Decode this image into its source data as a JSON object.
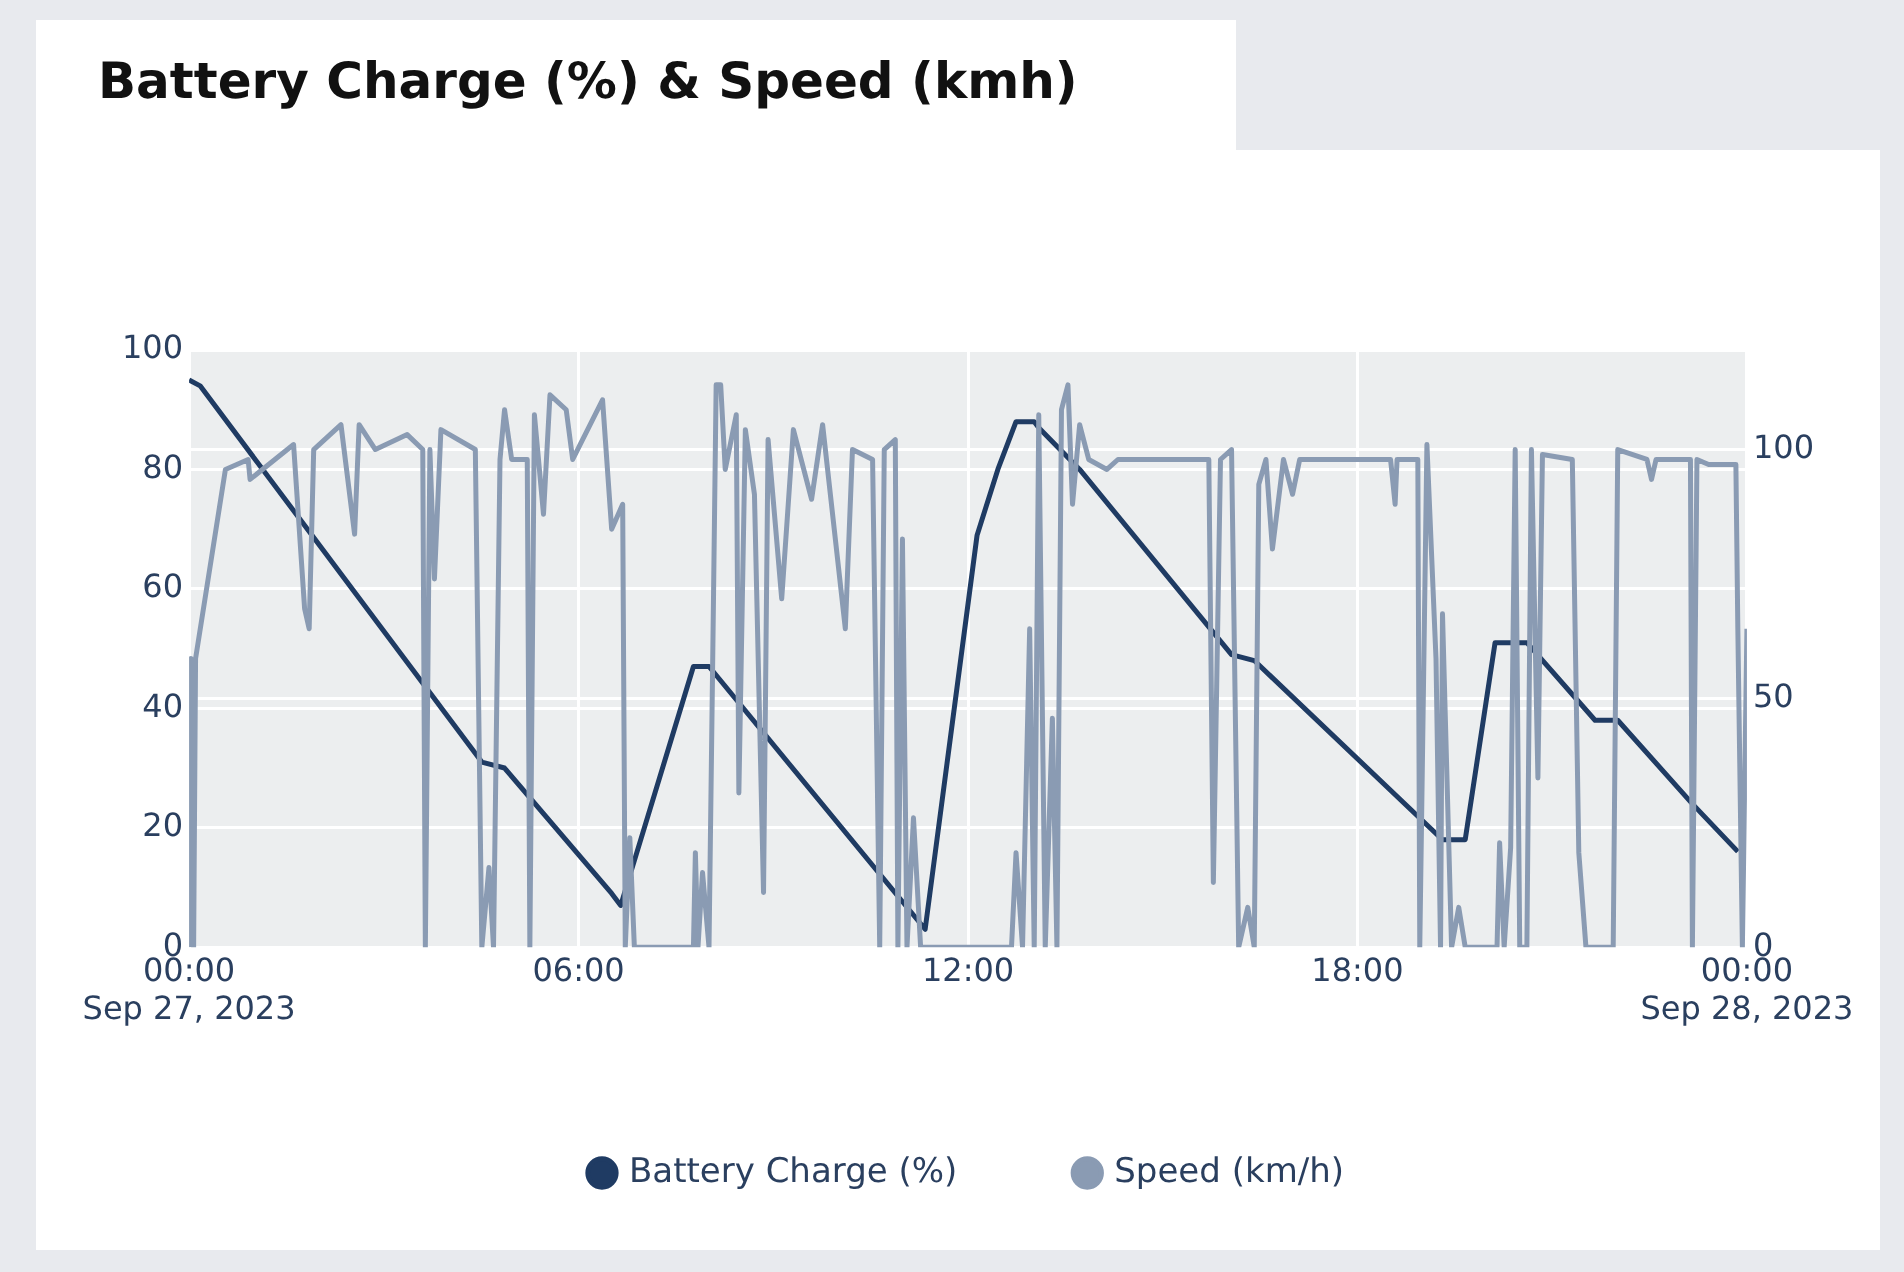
{
  "chart_data": {
    "type": "line",
    "title": "Battery Charge (%) & Speed (kmh)",
    "xlim": [
      0,
      24
    ],
    "xticks": [
      {
        "value": 0,
        "label": "00:00\nSep 27, 2023"
      },
      {
        "value": 6,
        "label": "06:00"
      },
      {
        "value": 12,
        "label": "12:00"
      },
      {
        "value": 18,
        "label": "18:00"
      },
      {
        "value": 24,
        "label": "00:00\nSep 28, 2023"
      }
    ],
    "ylim": [
      0,
      100
    ],
    "yticks": [
      0,
      20,
      40,
      60,
      80,
      100
    ],
    "y2lim": [
      0,
      120
    ],
    "y2ticks": [
      0,
      50,
      100
    ],
    "grid": true,
    "legend": "bottom",
    "line_style": "solid",
    "series": [
      {
        "name": "Battery Charge (%)",
        "color": "#1f3b63",
        "x": [
          0,
          0.17,
          4.51,
          4.86,
          6.51,
          6.65,
          7.77,
          8.01,
          11.34,
          12.14,
          12.46,
          12.74,
          13.02,
          13.09,
          13.72,
          16.06,
          16.41,
          19.31,
          19.66,
          20.12,
          20.61,
          21.66,
          22.01,
          23.16,
          23.86
        ],
        "values": [
          95,
          94,
          31,
          30,
          9,
          7,
          47,
          47,
          3,
          69,
          80,
          88,
          88,
          87,
          80,
          49,
          48,
          18,
          18,
          51,
          51,
          38,
          38,
          24,
          16
        ]
      },
      {
        "name": "Speed (km/h)",
        "color": "#8a9bb3",
        "axis": "y2",
        "x": [
          0,
          0.03,
          0.07,
          0.1,
          0.56,
          0.91,
          0.94,
          1.61,
          1.78,
          1.85,
          1.92,
          2.34,
          2.55,
          2.62,
          2.87,
          3.36,
          3.6,
          3.64,
          3.71,
          3.78,
          3.88,
          4.41,
          4.51,
          4.62,
          4.69,
          4.79,
          4.86,
          4.97,
          5.21,
          5.25,
          5.32,
          5.46,
          5.56,
          5.81,
          5.91,
          6.37,
          6.51,
          6.68,
          6.72,
          6.79,
          6.86,
          7.77,
          7.8,
          7.84,
          7.91,
          8.01,
          8.08,
          8.12,
          8.19,
          8.26,
          8.43,
          8.47,
          8.57,
          8.71,
          8.85,
          8.92,
          9.13,
          9.31,
          9.59,
          9.76,
          10.11,
          10.22,
          10.53,
          10.64,
          10.71,
          10.88,
          10.92,
          10.99,
          11.06,
          11.16,
          11.27,
          12.67,
          12.74,
          12.84,
          12.95,
          13.02,
          13.09,
          13.19,
          13.3,
          13.37,
          13.44,
          13.54,
          13.61,
          13.72,
          13.86,
          14.14,
          14.31,
          15.71,
          15.78,
          15.89,
          16.06,
          16.17,
          16.31,
          16.41,
          16.48,
          16.59,
          16.69,
          16.86,
          17.0,
          17.11,
          18.51,
          18.58,
          18.61,
          18.93,
          18.96,
          19.07,
          19.21,
          19.28,
          19.31,
          19.45,
          19.56,
          19.66,
          20.15,
          20.19,
          20.26,
          20.36,
          20.43,
          20.5,
          20.61,
          20.68,
          20.78,
          20.85,
          21.31,
          21.41,
          21.52,
          21.94,
          22.01,
          22.46,
          22.53,
          22.6,
          23.13,
          23.16,
          23.23,
          23.41,
          23.83,
          23.86,
          23.93,
          24.0
        ],
        "values": [
          0,
          58,
          0,
          58,
          96,
          98,
          94,
          101,
          68,
          64,
          100,
          105,
          83,
          105,
          100,
          103,
          100,
          0,
          100,
          74,
          104,
          100,
          0,
          16,
          0,
          98,
          108,
          98,
          98,
          0,
          107,
          87,
          111,
          108,
          98,
          110,
          84,
          89,
          0,
          22,
          0,
          0,
          19,
          0,
          15,
          0,
          71,
          113,
          113,
          96,
          107,
          31,
          104,
          91,
          11,
          102,
          70,
          104,
          90,
          105,
          64,
          100,
          98,
          0,
          100,
          102,
          0,
          82,
          0,
          26,
          0,
          0,
          19,
          0,
          64,
          0,
          107,
          0,
          46,
          0,
          108,
          113,
          89,
          105,
          98,
          96,
          98,
          98,
          13,
          98,
          100,
          0,
          8,
          0,
          93,
          98,
          80,
          98,
          91,
          98,
          98,
          89,
          98,
          98,
          0,
          101,
          58,
          0,
          67,
          0,
          8,
          0,
          0,
          21,
          0,
          20,
          100,
          0,
          0,
          100,
          34,
          99,
          98,
          19,
          0,
          0,
          100,
          98,
          94,
          98,
          98,
          0,
          98,
          97,
          97,
          64,
          0,
          64
        ]
      }
    ]
  }
}
